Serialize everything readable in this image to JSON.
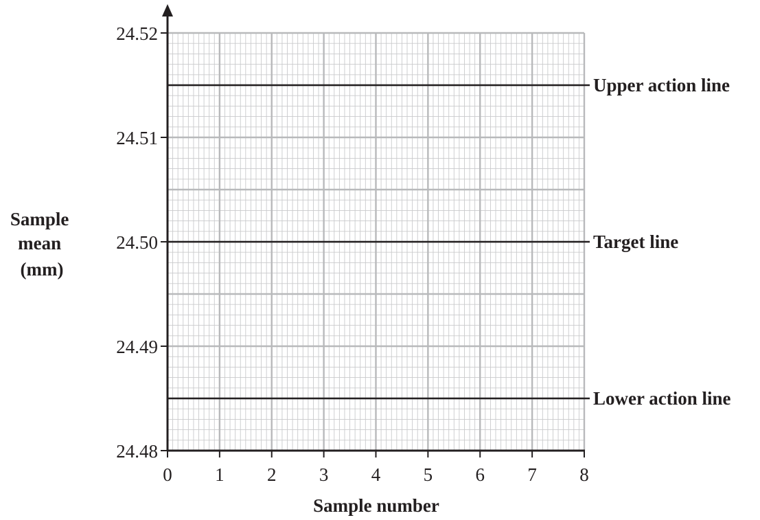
{
  "chart_data": {
    "type": "line",
    "xlabel": "Sample number",
    "ylabel_lines": [
      "Sample",
      "mean",
      "(mm)"
    ],
    "xlim": [
      0,
      8
    ],
    "ylim": [
      24.48,
      24.52
    ],
    "x_ticks": [
      "0",
      "1",
      "2",
      "3",
      "4",
      "5",
      "6",
      "7",
      "8"
    ],
    "y_ticks": [
      "24.48",
      "24.49",
      "24.50",
      "24.51",
      "24.52"
    ],
    "grid": true,
    "reference_lines": [
      {
        "name": "Upper action line",
        "y": 24.515
      },
      {
        "name": "Target line",
        "y": 24.5
      },
      {
        "name": "Lower action line",
        "y": 24.485
      }
    ],
    "series": []
  },
  "colors": {
    "axis": "#231f20",
    "grid_major": "#b8b9bb",
    "grid_minor": "#c9cacc",
    "reference": "#231f20"
  }
}
